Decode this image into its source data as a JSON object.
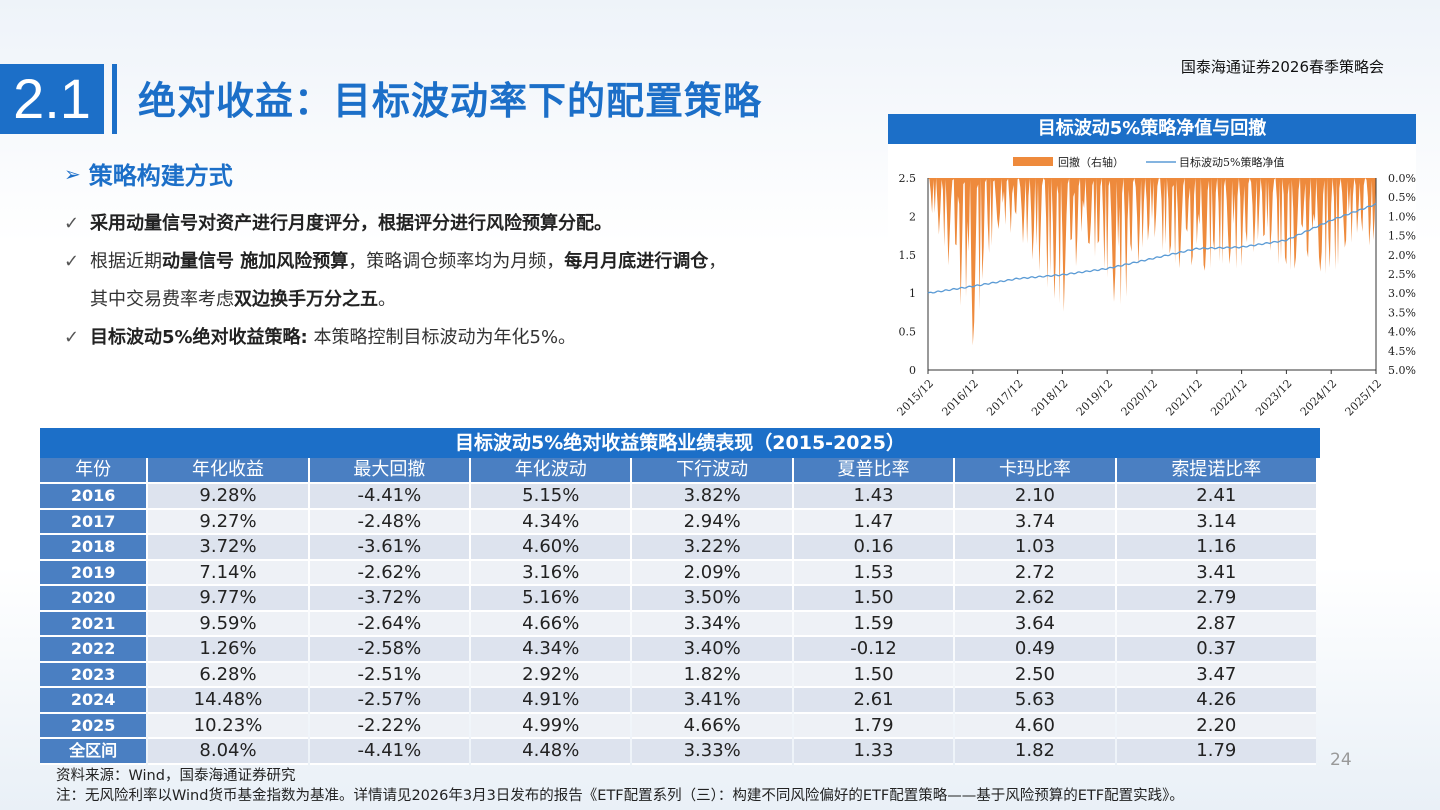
{
  "header": {
    "org_title": "国泰海通证券2026春季策略会"
  },
  "section": {
    "number": "2.1",
    "title": "绝对收益：目标波动率下的配置策略"
  },
  "bullets": {
    "heading": "策略构建方式",
    "b1_bold": "采用动量信号对资产进行月度评分，根据评分进行风险预算分配。",
    "b2_a": "根据近期",
    "b2_b": "动量信号 施加风险预算",
    "b2_c": "，策略调仓频率均为月频，",
    "b2_d": "每月月底进行调仓",
    "b2_e": "，",
    "b2_f": "其中交易费率考虑",
    "b2_g": "双边换手万分之五",
    "b2_h": "。",
    "b3_bold": "目标波动5%绝对收益策略:",
    "b3_rest": " 本策略控制目标波动为年化5%。"
  },
  "chart": {
    "title": "目标波动5%策略净值与回撤",
    "legend_drawdown": "回撤（右轴）",
    "legend_nav": "目标波动5%策略净值",
    "colors": {
      "drawdown": "#ee8a3c",
      "nav": "#5b9bd5"
    }
  },
  "chart_data": {
    "type": "line",
    "x_ticks": [
      "2015/12",
      "2016/12",
      "2017/12",
      "2018/12",
      "2019/12",
      "2020/12",
      "2021/12",
      "2022/12",
      "2023/12",
      "2024/12",
      "2025/12"
    ],
    "left_axis": {
      "ticks": [
        "0",
        "0.5",
        "1",
        "1.5",
        "2",
        "2.5"
      ],
      "range": [
        0,
        2.5
      ]
    },
    "right_axis": {
      "ticks": [
        "0.0%",
        "0.5%",
        "1.0%",
        "1.5%",
        "2.0%",
        "2.5%",
        "3.0%",
        "3.5%",
        "4.0%",
        "4.5%",
        "5.0%"
      ],
      "range": [
        0,
        5
      ],
      "inverted": true
    },
    "series": [
      {
        "name": "目标波动5%策略净值",
        "kind": "line",
        "axis": "left",
        "x": [
          "2015/12",
          "2016/12",
          "2017/12",
          "2018/12",
          "2019/12",
          "2020/12",
          "2021/12",
          "2022/12",
          "2023/12",
          "2024/12",
          "2025/12"
        ],
        "values": [
          1.0,
          1.09,
          1.19,
          1.24,
          1.32,
          1.45,
          1.58,
          1.6,
          1.69,
          1.95,
          2.16
        ]
      },
      {
        "name": "回撤（右轴）",
        "kind": "area",
        "axis": "right",
        "x": [
          "2015/12",
          "2016/03",
          "2016/12",
          "2017/06",
          "2017/12",
          "2018/06",
          "2018/12",
          "2019/06",
          "2019/12",
          "2020/03",
          "2020/12",
          "2021/06",
          "2021/12",
          "2022/06",
          "2022/12",
          "2023/06",
          "2023/12",
          "2024/06",
          "2024/12",
          "2025/06",
          "2025/12"
        ],
        "values": [
          0.6,
          1.5,
          4.4,
          1.3,
          1.5,
          2.5,
          3.6,
          1.6,
          2.6,
          3.7,
          1.5,
          2.3,
          2.6,
          2.2,
          2.5,
          1.8,
          2.5,
          2.3,
          2.57,
          1.6,
          2.2
        ]
      }
    ]
  },
  "table": {
    "title": "目标波动5%绝对收益策略业绩表现（2015-2025）",
    "headers": [
      "年份",
      "年化收益",
      "最大回撤",
      "年化波动",
      "下行波动",
      "夏普比率",
      "卡玛比率",
      "索提诺比率"
    ],
    "rows": [
      [
        "2016",
        "9.28%",
        "-4.41%",
        "5.15%",
        "3.82%",
        "1.43",
        "2.10",
        "2.41"
      ],
      [
        "2017",
        "9.27%",
        "-2.48%",
        "4.34%",
        "2.94%",
        "1.47",
        "3.74",
        "3.14"
      ],
      [
        "2018",
        "3.72%",
        "-3.61%",
        "4.60%",
        "3.22%",
        "0.16",
        "1.03",
        "1.16"
      ],
      [
        "2019",
        "7.14%",
        "-2.62%",
        "3.16%",
        "2.09%",
        "1.53",
        "2.72",
        "3.41"
      ],
      [
        "2020",
        "9.77%",
        "-3.72%",
        "5.16%",
        "3.50%",
        "1.50",
        "2.62",
        "2.79"
      ],
      [
        "2021",
        "9.59%",
        "-2.64%",
        "4.66%",
        "3.34%",
        "1.59",
        "3.64",
        "2.87"
      ],
      [
        "2022",
        "1.26%",
        "-2.58%",
        "4.34%",
        "3.40%",
        "-0.12",
        "0.49",
        "0.37"
      ],
      [
        "2023",
        "6.28%",
        "-2.51%",
        "2.92%",
        "1.82%",
        "1.50",
        "2.50",
        "3.47"
      ],
      [
        "2024",
        "14.48%",
        "-2.57%",
        "4.91%",
        "3.41%",
        "2.61",
        "5.63",
        "4.26"
      ],
      [
        "2025",
        "10.23%",
        "-2.22%",
        "4.99%",
        "4.66%",
        "1.79",
        "4.60",
        "2.20"
      ],
      [
        "全区间",
        "8.04%",
        "-4.41%",
        "4.48%",
        "3.33%",
        "1.33",
        "1.82",
        "1.79"
      ]
    ]
  },
  "footer": {
    "page": "24",
    "source": "资料来源：Wind，国泰海通证券研究",
    "note": "注：无风险利率以Wind货币基金指数为基准。详情请见2026年3月3日发布的报告《ETF配置系列（三）：构建不同风险偏好的ETF配置策略——基于风险预算的ETF配置实践》。"
  }
}
